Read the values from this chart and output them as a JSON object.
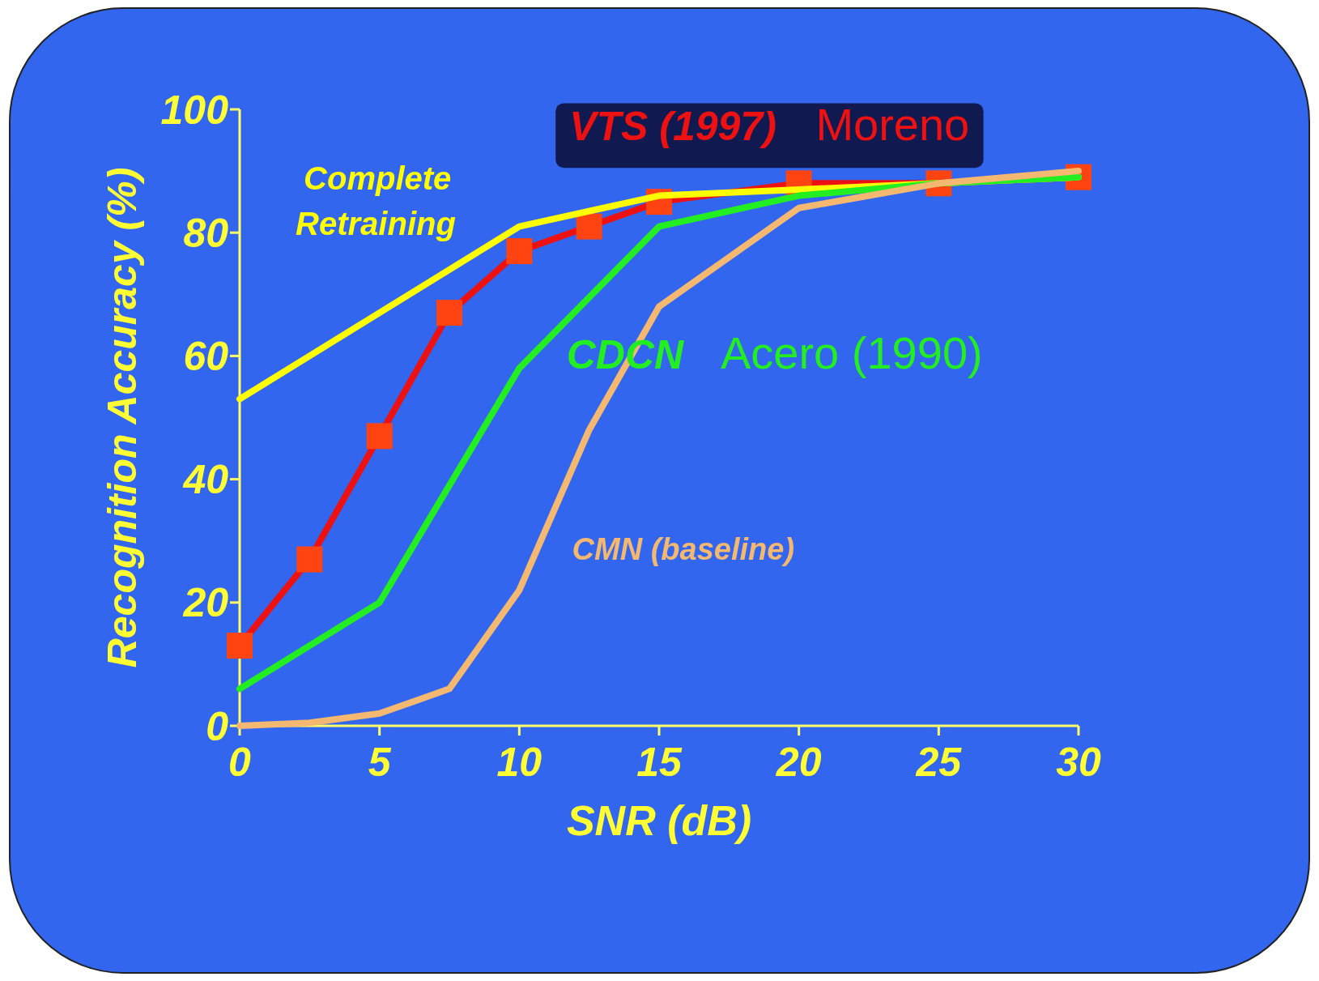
{
  "chart_data": {
    "type": "line",
    "xlabel": "SNR (dB)",
    "ylabel": "Recognition Accuracy (%)",
    "xlim": [
      0,
      30
    ],
    "xticks": [
      0,
      5,
      10,
      15,
      20,
      25,
      30
    ],
    "ylim": [
      0,
      100
    ],
    "yticks": [
      0,
      20,
      40,
      60,
      80,
      100
    ],
    "grid": false,
    "series": [
      {
        "name": "Complete Retraining",
        "color": "#ffff00",
        "x": [
          0,
          10,
          15,
          20,
          25,
          30
        ],
        "values": [
          53,
          81,
          86,
          87,
          88,
          89
        ],
        "marker": "none"
      },
      {
        "name": "VTS (1997)",
        "color": "#ee1111",
        "x": [
          0,
          2.5,
          5,
          7.5,
          10,
          12.5,
          15,
          20,
          25,
          30
        ],
        "values": [
          13,
          27,
          47,
          67,
          77,
          81,
          85,
          88,
          88,
          89
        ],
        "marker": "square"
      },
      {
        "name": "CDCN",
        "color": "#22ee22",
        "x": [
          0,
          5,
          10,
          15,
          20,
          25,
          30
        ],
        "values": [
          6,
          20,
          58,
          81,
          86,
          88,
          89
        ],
        "marker": "none"
      },
      {
        "name": "CMN (baseline)",
        "color": "#f4b870",
        "x": [
          0,
          2.5,
          5,
          7.5,
          10,
          12.5,
          15,
          20,
          25,
          30
        ],
        "values": [
          0,
          0.5,
          2,
          6,
          22,
          48,
          68,
          84,
          88,
          90
        ],
        "marker": "none"
      }
    ],
    "annotations": [
      "Moreno",
      "Acero (1990)"
    ]
  }
}
